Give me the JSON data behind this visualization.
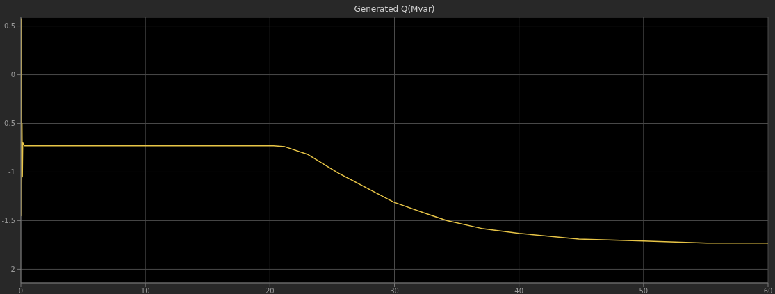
{
  "chart_data": {
    "type": "line",
    "title": "Generated Q(Mvar)",
    "x": [
      0.03,
      0.06,
      0.09,
      0.12,
      0.15,
      0.3,
      10,
      20,
      20.3,
      21.2,
      23.06,
      25.48,
      27.71,
      29.95,
      32.37,
      34.23,
      37.0,
      40,
      44.8,
      50,
      55.1,
      60
    ],
    "series": [
      {
        "color": "#e8c547",
        "values": [
          0.58,
          -1.45,
          -0.5,
          -1.05,
          -0.7,
          -0.73,
          -0.73,
          -0.73,
          -0.73,
          -0.74,
          -0.82,
          -1.01,
          -1.16,
          -1.31,
          -1.42,
          -1.5,
          -1.58,
          -1.63,
          -1.69,
          -1.71,
          -1.73,
          -1.73
        ]
      }
    ],
    "xlim": [
      0,
      60
    ],
    "xticks": [
      0,
      10,
      20,
      30,
      40,
      50,
      60
    ],
    "ylim": [
      -2.14,
      0.59
    ],
    "yticks": [
      0.5,
      0,
      -0.5,
      -1,
      -1.5,
      -2
    ],
    "grid": true,
    "marker": "none",
    "line_style": "solid"
  }
}
